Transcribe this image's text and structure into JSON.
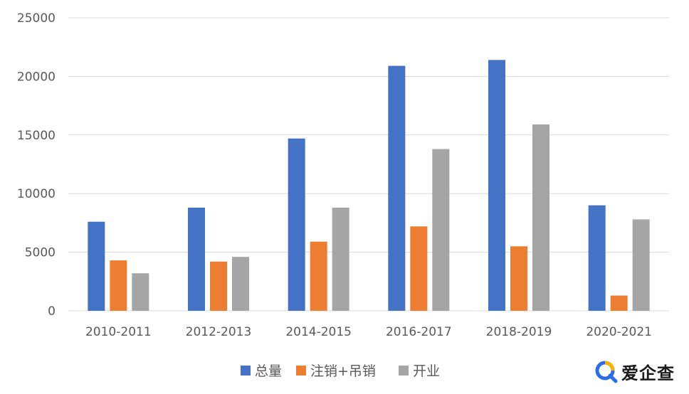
{
  "chart_data": {
    "type": "bar",
    "categories": [
      "2010-2011",
      "2012-2013",
      "2014-2015",
      "2016-2017",
      "2018-2019",
      "2020-2021"
    ],
    "series": [
      {
        "name": "总量",
        "color": "#4472C4",
        "values": [
          7600,
          8800,
          14700,
          20900,
          21400,
          9000
        ]
      },
      {
        "name": "注销+吊销",
        "color": "#ED7D31",
        "values": [
          4300,
          4200,
          5900,
          7200,
          5500,
          1300
        ]
      },
      {
        "name": "开业",
        "color": "#A5A5A5",
        "values": [
          3200,
          4600,
          8800,
          13800,
          15900,
          7800
        ]
      }
    ],
    "yticks": [
      "0",
      "5000",
      "10000",
      "15000",
      "20000",
      "25000"
    ],
    "ylim": [
      0,
      25000
    ],
    "grid": true,
    "legend": "bottom"
  },
  "watermark": {
    "text": "爱企查",
    "icon": "magnifier-logo-icon"
  }
}
